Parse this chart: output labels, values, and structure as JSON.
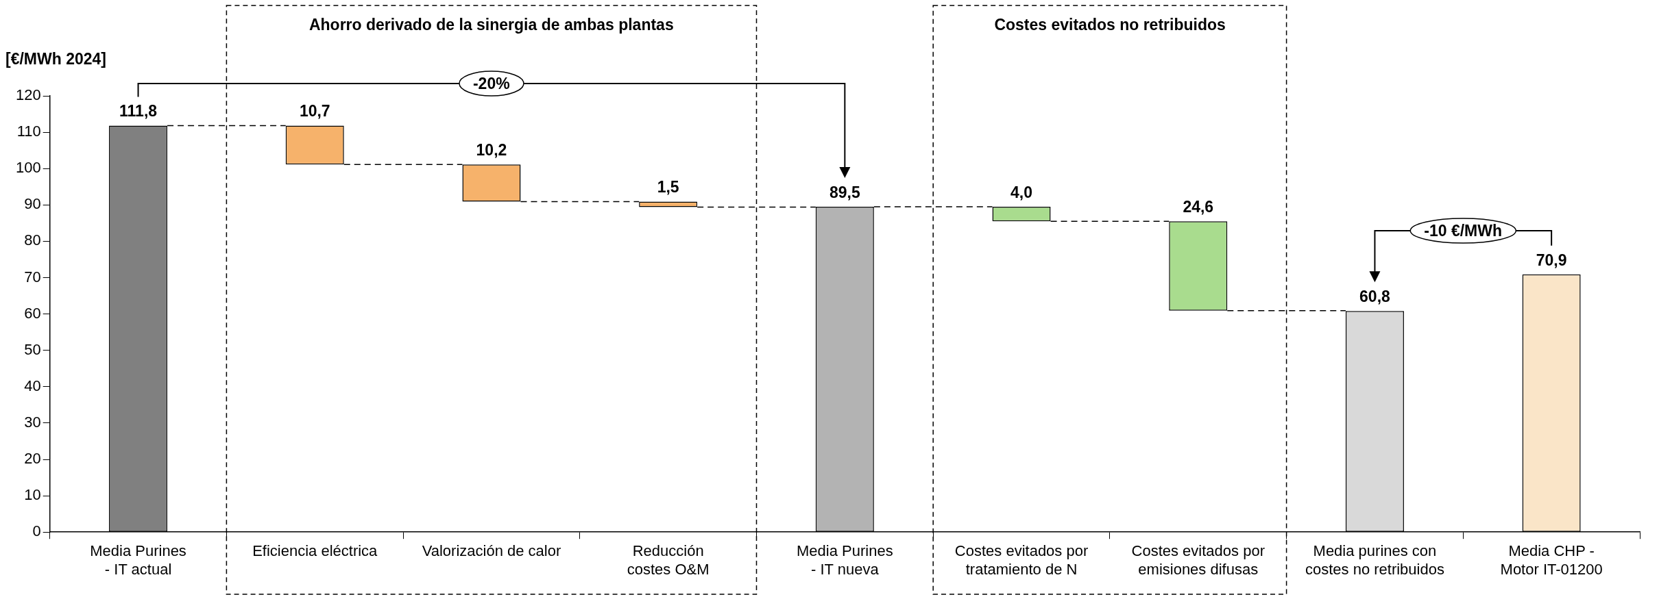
{
  "chart_data": {
    "type": "bar",
    "ylabel": "[€/MWh 2024]",
    "categories": [
      "Media Purines\n- IT actual",
      "Eficiencia eléctrica",
      "Valorización de calor",
      "Reducción\ncostes O&M",
      "Media Purines\n- IT nueva",
      "Costes evitados por\ntratamiento de N",
      "Costes evitados por\nemisiones difusas",
      "Media purines con\ncostes no retribuidos",
      "Media CHP -\nMotor IT-01200"
    ],
    "values": [
      111.8,
      10.7,
      10.2,
      1.5,
      89.5,
      4.0,
      24.6,
      60.8,
      70.9
    ],
    "base": [
      0,
      101.1,
      90.9,
      89.4,
      0,
      85.5,
      60.9,
      0,
      0
    ],
    "value_labels": [
      "111,8",
      "10,7",
      "10,2",
      "1,5",
      "89,5",
      "4,0",
      "24,6",
      "60,8",
      "70,9"
    ],
    "colors": [
      "#808080",
      "#f6b26b",
      "#f6b26b",
      "#f6b26b",
      "#b3b3b3",
      "#a9dc8e",
      "#a9dc8e",
      "#d9d9d9",
      "#fae5c8"
    ],
    "ylim": [
      0,
      120
    ],
    "yticks": [
      0,
      10,
      20,
      30,
      40,
      50,
      60,
      70,
      80,
      90,
      100,
      110,
      120
    ],
    "grid": false,
    "legend": false,
    "annotations": [
      "Ahorro derivado de la sinergia de ambas plantas",
      "Costes evitados no retribuidos",
      "-20%",
      "-10 €/MWh"
    ]
  }
}
